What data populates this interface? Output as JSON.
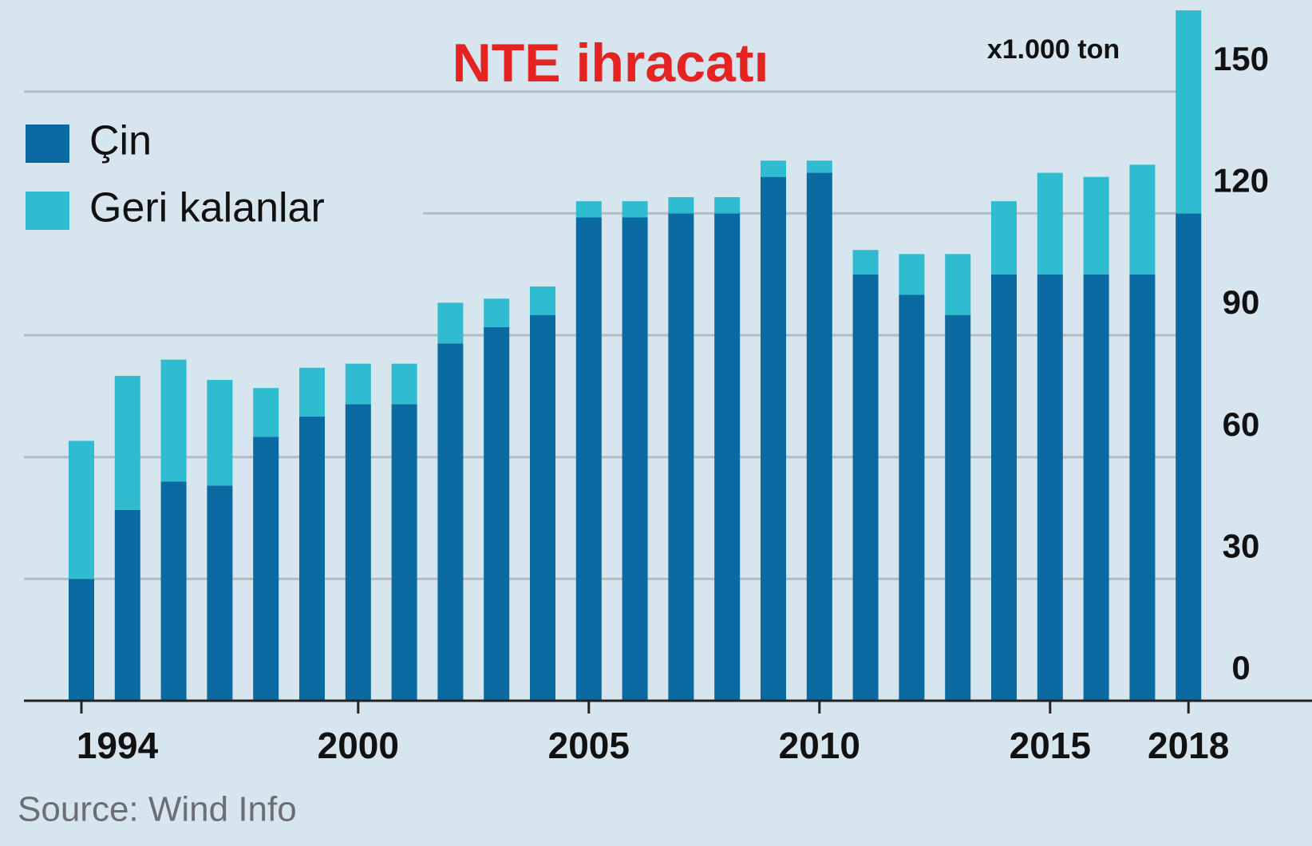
{
  "chart_data": {
    "type": "stacked_bar",
    "title": "NTE ihracatı",
    "unit_label": "x1.000 ton",
    "source": "Source: Wind Info",
    "categories": [
      "1994",
      null,
      null,
      null,
      null,
      null,
      "2000",
      null,
      null,
      null,
      null,
      "2005",
      null,
      null,
      null,
      null,
      "2010",
      null,
      null,
      null,
      null,
      "2015",
      null,
      null,
      "2018"
    ],
    "series": [
      {
        "name": "Çin",
        "color": "#0a6aa1",
        "values": [
          30,
          47,
          54,
          53,
          65,
          70,
          73,
          73,
          88,
          92,
          95,
          119,
          119,
          120,
          120,
          129,
          130,
          105,
          100,
          95,
          105,
          105,
          105,
          105,
          120
        ]
      },
      {
        "name": "Geri kalanlar",
        "color": "#2fbcd0",
        "values": [
          34,
          33,
          30,
          26,
          12,
          12,
          10,
          10,
          10,
          7,
          7,
          4,
          4,
          4,
          4,
          4,
          3,
          6,
          10,
          15,
          18,
          25,
          24,
          27,
          50
        ]
      }
    ],
    "ylim": [
      0,
      170
    ],
    "yticks": [
      0,
      30,
      60,
      90,
      120,
      150
    ],
    "grid": true
  }
}
